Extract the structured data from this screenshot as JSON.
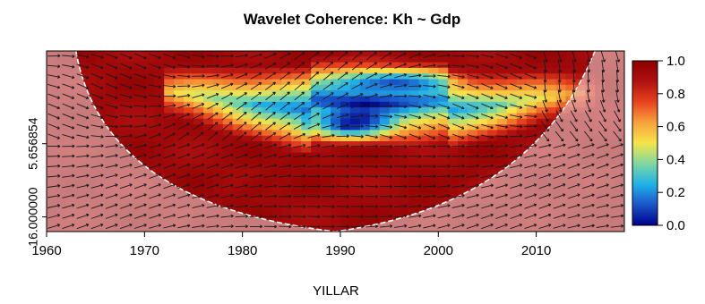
{
  "chart_data": {
    "type": "heatmap",
    "title": "Wavelet Coherence: Kh ~ Gdp",
    "xlabel": "YILLAR",
    "ylabel": "",
    "x_ticks": [
      1960,
      1970,
      1980,
      1990,
      2000,
      2010
    ],
    "x_range": [
      1960,
      2019
    ],
    "y_ticks": [
      {
        "label": "5.656854",
        "value": 5.656854
      },
      {
        "label": "16.000000",
        "value": 16.0
      }
    ],
    "y_range_log2": [
      0.6,
      4.3
    ],
    "colorbar": {
      "ticks": [
        "0.0",
        "0.2",
        "0.4",
        "0.6",
        "0.8",
        "1.0"
      ],
      "values": [
        0.0,
        0.2,
        0.4,
        0.6,
        0.8,
        1.0
      ],
      "range": [
        0.0,
        1.0
      ],
      "colors": [
        "#00008b",
        "#1a55c8",
        "#20b2e8",
        "#7fd8a0",
        "#f5e54a",
        "#f7a23a",
        "#e8421e",
        "#b01010",
        "#8b0000"
      ]
    },
    "low_coherence_region": {
      "description_x_years": [
        1972,
        2016
      ],
      "x_center": 1993,
      "min_value": 0.0
    },
    "cone_of_influence": {
      "left_top_year": 1963,
      "bottom_year": 1989.5,
      "right_top_year": 2016
    },
    "grid": false,
    "legend": "right"
  }
}
